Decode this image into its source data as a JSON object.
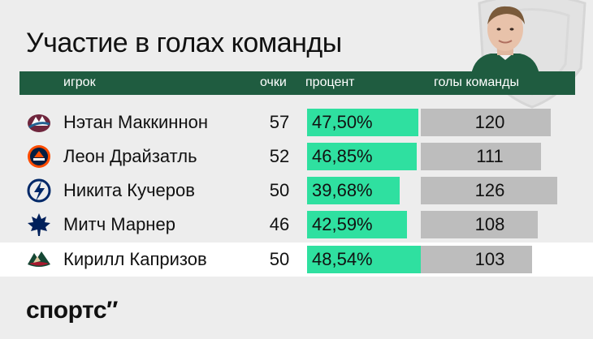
{
  "title": "Участие в голах команды",
  "header": {
    "player": "игрок",
    "points": "очки",
    "percent": "процент",
    "team_goals": "голы команды"
  },
  "brand": "спортс″",
  "colors": {
    "header_bg": "#1f5c40",
    "percent_bar": "#2fe0a0",
    "goals_bar": "#bdbdbd",
    "highlight_row": "#ffffff"
  },
  "chart_data": {
    "type": "table",
    "columns": [
      "игрок",
      "очки",
      "процент",
      "голы команды"
    ],
    "rows": [
      {
        "player": "Нэтан Маккиннон",
        "team_logo": "colorado-avalanche-logo-icon",
        "points": "57",
        "percent": "47,50%",
        "percent_value": 47.5,
        "team_goals": "120",
        "team_goals_value": 120,
        "highlight": false
      },
      {
        "player": "Леон Драйзатль",
        "team_logo": "edmonton-oilers-logo-icon",
        "points": "52",
        "percent": "46,85%",
        "percent_value": 46.85,
        "team_goals": "111",
        "team_goals_value": 111,
        "highlight": false
      },
      {
        "player": "Никита Кучеров",
        "team_logo": "tampa-bay-lightning-logo-icon",
        "points": "50",
        "percent": "39,68%",
        "percent_value": 39.68,
        "team_goals": "126",
        "team_goals_value": 126,
        "highlight": false
      },
      {
        "player": "Митч Марнер",
        "team_logo": "toronto-maple-leafs-logo-icon",
        "points": "46",
        "percent": "42,59%",
        "percent_value": 42.59,
        "team_goals": "108",
        "team_goals_value": 108,
        "highlight": false
      },
      {
        "player": "Кирилл Капризов",
        "team_logo": "minnesota-wild-logo-icon",
        "points": "50",
        "percent": "48,54%",
        "percent_value": 48.54,
        "team_goals": "103",
        "team_goals_value": 103,
        "highlight": true
      }
    ]
  }
}
